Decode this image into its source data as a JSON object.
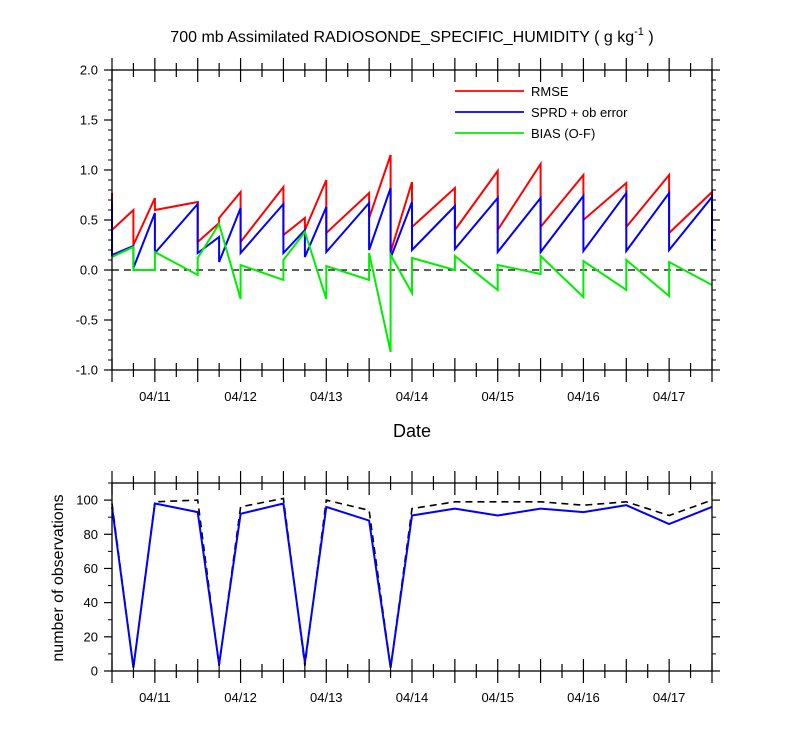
{
  "chart_data": [
    {
      "type": "line",
      "title": "700 mb Assimilated RADIOSONDE_SPECIFIC_HUMIDITY ( g kg",
      "title_units_sup": "-1",
      "title_close": " )",
      "xlabel": "Date",
      "ylabel": "",
      "ylim": [
        -1.0,
        2.0
      ],
      "xlim": [
        10.5,
        17.5
      ],
      "y_ticks": [
        -1.0,
        -0.5,
        0.0,
        0.5,
        1.0,
        1.5,
        2.0
      ],
      "y_tick_labels": [
        "-1.0",
        "-0.5",
        "0.0",
        "0.5",
        "1.0",
        "1.5",
        "2.0"
      ],
      "x_ticks": [
        11,
        12,
        13,
        14,
        15,
        16,
        17
      ],
      "x_tick_labels": [
        "04/11",
        "04/12",
        "04/13",
        "04/14",
        "04/15",
        "04/16",
        "04/17"
      ],
      "zero_line": "dashed",
      "legend_position": "top-right",
      "series": [
        {
          "name": "RMSE",
          "color": "#ff0000",
          "points": [
            [
              10.5,
              0.77
            ],
            [
              10.5,
              0.4
            ],
            [
              10.75,
              0.6
            ],
            [
              10.75,
              0.25
            ],
            [
              11.0,
              0.72
            ],
            [
              11.0,
              0.6
            ],
            [
              11.5,
              0.68
            ],
            [
              11.5,
              0.28
            ],
            [
              11.75,
              0.47
            ],
            [
              11.75,
              0.52
            ],
            [
              12.0,
              0.78
            ],
            [
              12.0,
              0.28
            ],
            [
              12.5,
              0.83
            ],
            [
              12.5,
              0.35
            ],
            [
              12.75,
              0.52
            ],
            [
              12.75,
              0.4
            ],
            [
              13.0,
              0.9
            ],
            [
              13.0,
              0.37
            ],
            [
              13.5,
              0.77
            ],
            [
              13.5,
              0.52
            ],
            [
              13.75,
              1.15
            ],
            [
              13.75,
              0.18
            ],
            [
              14.0,
              0.88
            ],
            [
              14.0,
              0.43
            ],
            [
              14.5,
              0.82
            ],
            [
              14.5,
              0.4
            ],
            [
              15.0,
              0.99
            ],
            [
              15.0,
              0.4
            ],
            [
              15.5,
              1.06
            ],
            [
              15.5,
              0.43
            ],
            [
              16.0,
              0.95
            ],
            [
              16.0,
              0.5
            ],
            [
              16.5,
              0.87
            ],
            [
              16.5,
              0.43
            ],
            [
              17.0,
              0.95
            ],
            [
              17.0,
              0.37
            ],
            [
              17.5,
              0.78
            ],
            [
              17.5,
              0.4
            ]
          ]
        },
        {
          "name": "SPRD + ob error",
          "color": "#0000ff",
          "points": [
            [
              10.5,
              0.69
            ],
            [
              10.5,
              0.15
            ],
            [
              10.75,
              0.24
            ],
            [
              10.75,
              0.02
            ],
            [
              11.0,
              0.57
            ],
            [
              11.0,
              0.17
            ],
            [
              11.5,
              0.66
            ],
            [
              11.5,
              0.17
            ],
            [
              11.75,
              0.33
            ],
            [
              11.75,
              0.08
            ],
            [
              12.0,
              0.62
            ],
            [
              12.0,
              0.17
            ],
            [
              12.5,
              0.66
            ],
            [
              12.5,
              0.17
            ],
            [
              12.75,
              0.4
            ],
            [
              12.75,
              0.13
            ],
            [
              13.0,
              0.63
            ],
            [
              13.0,
              0.18
            ],
            [
              13.5,
              0.67
            ],
            [
              13.5,
              0.2
            ],
            [
              13.75,
              0.82
            ],
            [
              13.75,
              0.12
            ],
            [
              14.0,
              0.68
            ],
            [
              14.0,
              0.2
            ],
            [
              14.5,
              0.64
            ],
            [
              14.5,
              0.21
            ],
            [
              15.0,
              0.72
            ],
            [
              15.0,
              0.18
            ],
            [
              15.5,
              0.72
            ],
            [
              15.5,
              0.18
            ],
            [
              16.0,
              0.74
            ],
            [
              16.0,
              0.19
            ],
            [
              16.5,
              0.77
            ],
            [
              16.5,
              0.19
            ],
            [
              17.0,
              0.77
            ],
            [
              17.0,
              0.2
            ],
            [
              17.5,
              0.73
            ],
            [
              17.5,
              0.2
            ]
          ]
        },
        {
          "name": "BIAS (O-F)",
          "color": "#00ee00",
          "points": [
            [
              10.5,
              0.13
            ],
            [
              10.75,
              0.23
            ],
            [
              10.75,
              0.0
            ],
            [
              11.0,
              0.0
            ],
            [
              11.0,
              0.18
            ],
            [
              11.5,
              -0.05
            ],
            [
              11.5,
              0.12
            ],
            [
              11.75,
              0.46
            ],
            [
              12.0,
              -0.29
            ],
            [
              12.0,
              0.05
            ],
            [
              12.5,
              -0.1
            ],
            [
              12.5,
              0.1
            ],
            [
              12.75,
              0.38
            ],
            [
              13.0,
              -0.29
            ],
            [
              13.0,
              0.04
            ],
            [
              13.5,
              -0.1
            ],
            [
              13.5,
              0.17
            ],
            [
              13.75,
              -0.82
            ],
            [
              13.75,
              0.15
            ],
            [
              14.0,
              -0.23
            ],
            [
              14.0,
              0.12
            ],
            [
              14.5,
              0.0
            ],
            [
              14.5,
              0.14
            ],
            [
              15.0,
              -0.2
            ],
            [
              15.0,
              0.05
            ],
            [
              15.5,
              -0.04
            ],
            [
              15.5,
              0.14
            ],
            [
              16.0,
              -0.27
            ],
            [
              16.0,
              0.09
            ],
            [
              16.5,
              -0.2
            ],
            [
              16.5,
              0.1
            ],
            [
              17.0,
              -0.26
            ],
            [
              17.0,
              0.08
            ],
            [
              17.5,
              -0.15
            ]
          ]
        }
      ]
    },
    {
      "type": "line",
      "ylabel": "number of observations",
      "ylim": [
        0,
        110
      ],
      "xlim": [
        10.5,
        17.5
      ],
      "y_ticks": [
        0,
        20,
        40,
        60,
        80,
        100
      ],
      "y_tick_labels": [
        "0",
        "20",
        "40",
        "60",
        "80",
        "100"
      ],
      "x_ticks": [
        11,
        12,
        13,
        14,
        15,
        16,
        17
      ],
      "x_tick_labels": [
        "04/11",
        "04/12",
        "04/13",
        "04/14",
        "04/15",
        "04/16",
        "04/17"
      ],
      "series": [
        {
          "style": "dashed",
          "color": "#000000",
          "points": [
            [
              10.5,
              98
            ],
            [
              10.75,
              2
            ],
            [
              11.0,
              99
            ],
            [
              11.5,
              100
            ],
            [
              11.75,
              3
            ],
            [
              12.0,
              96
            ],
            [
              12.5,
              101
            ],
            [
              12.75,
              3
            ],
            [
              13.0,
              100
            ],
            [
              13.5,
              94
            ],
            [
              13.75,
              2
            ],
            [
              14.0,
              95
            ],
            [
              14.5,
              99
            ],
            [
              15.0,
              99
            ],
            [
              15.5,
              99
            ],
            [
              16.0,
              97
            ],
            [
              16.5,
              99
            ],
            [
              17.0,
              91
            ],
            [
              17.5,
              100
            ]
          ]
        },
        {
          "style": "solid",
          "color": "#0000ff",
          "points": [
            [
              10.5,
              96
            ],
            [
              10.75,
              2
            ],
            [
              11.0,
              98
            ],
            [
              11.5,
              93
            ],
            [
              11.75,
              4
            ],
            [
              12.0,
              92
            ],
            [
              12.5,
              98
            ],
            [
              12.75,
              5
            ],
            [
              13.0,
              96
            ],
            [
              13.5,
              88
            ],
            [
              13.75,
              2
            ],
            [
              14.0,
              91
            ],
            [
              14.5,
              95
            ],
            [
              15.0,
              91
            ],
            [
              15.5,
              95
            ],
            [
              16.0,
              93
            ],
            [
              16.5,
              97
            ],
            [
              17.0,
              86
            ],
            [
              17.5,
              96
            ]
          ]
        }
      ]
    }
  ]
}
